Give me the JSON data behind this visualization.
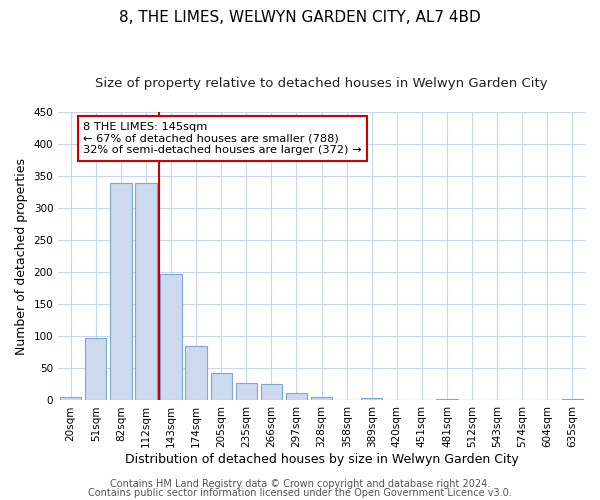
{
  "title": "8, THE LIMES, WELWYN GARDEN CITY, AL7 4BD",
  "subtitle": "Size of property relative to detached houses in Welwyn Garden City",
  "xlabel": "Distribution of detached houses by size in Welwyn Garden City",
  "ylabel": "Number of detached properties",
  "bar_labels": [
    "20sqm",
    "51sqm",
    "82sqm",
    "112sqm",
    "143sqm",
    "174sqm",
    "205sqm",
    "235sqm",
    "266sqm",
    "297sqm",
    "328sqm",
    "358sqm",
    "389sqm",
    "420sqm",
    "451sqm",
    "481sqm",
    "512sqm",
    "543sqm",
    "574sqm",
    "604sqm",
    "635sqm"
  ],
  "bar_values": [
    5,
    97,
    340,
    340,
    197,
    85,
    43,
    27,
    25,
    11,
    5,
    0,
    4,
    0,
    0,
    2,
    0,
    0,
    0,
    0,
    2
  ],
  "bar_color": "#ccd9ee",
  "bar_edge_color": "#7aaad4",
  "property_line_label": "8 THE LIMES: 145sqm",
  "annotation_line1": "← 67% of detached houses are smaller (788)",
  "annotation_line2": "32% of semi-detached houses are larger (372) →",
  "ylim": [
    0,
    450
  ],
  "yticks": [
    0,
    50,
    100,
    150,
    200,
    250,
    300,
    350,
    400,
    450
  ],
  "footer1": "Contains HM Land Registry data © Crown copyright and database right 2024.",
  "footer2": "Contains public sector information licensed under the Open Government Licence v3.0.",
  "background_color": "#ffffff",
  "grid_color": "#c8d8ec",
  "line_color": "#cc0000",
  "title_fontsize": 11,
  "subtitle_fontsize": 9.5,
  "axis_label_fontsize": 9,
  "tick_fontsize": 7.5,
  "footer_fontsize": 7,
  "property_line_x": 3.5
}
